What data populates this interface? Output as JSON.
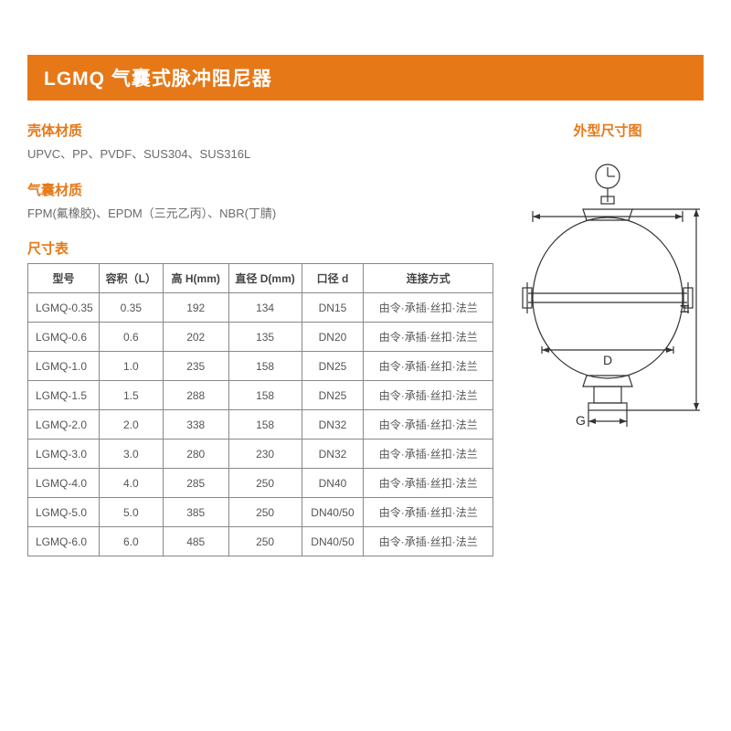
{
  "header": {
    "title": "LGMQ 气囊式脉冲阻尼器"
  },
  "sections": {
    "shell": {
      "title": "壳体材质",
      "body": "UPVC、PP、PVDF、SUS304、SUS316L"
    },
    "bladder": {
      "title": "气囊材质",
      "body": "FPM(氟橡胶)、EPDM（三元乙丙）、NBR(丁腈)"
    },
    "dims": {
      "title": "尺寸表"
    },
    "drawing": {
      "title": "外型尺寸图"
    }
  },
  "table": {
    "columns": [
      "型号",
      "容积（L）",
      "高 H(mm)",
      "直径 D(mm)",
      "口径 d",
      "连接方式"
    ],
    "col_widths": [
      "78px",
      "70px",
      "72px",
      "80px",
      "68px",
      "142px"
    ],
    "rows": [
      [
        "LGMQ-0.35",
        "0.35",
        "192",
        "134",
        "DN15",
        "由令·承插·丝扣·法兰"
      ],
      [
        "LGMQ-0.6",
        "0.6",
        "202",
        "135",
        "DN20",
        "由令·承插·丝扣·法兰"
      ],
      [
        "LGMQ-1.0",
        "1.0",
        "235",
        "158",
        "DN25",
        "由令·承插·丝扣·法兰"
      ],
      [
        "LGMQ-1.5",
        "1.5",
        "288",
        "158",
        "DN25",
        "由令·承插·丝扣·法兰"
      ],
      [
        "LGMQ-2.0",
        "2.0",
        "338",
        "158",
        "DN32",
        "由令·承插·丝扣·法兰"
      ],
      [
        "LGMQ-3.0",
        "3.0",
        "280",
        "230",
        "DN32",
        "由令·承插·丝扣·法兰"
      ],
      [
        "LGMQ-4.0",
        "4.0",
        "285",
        "250",
        "DN40",
        "由令·承插·丝扣·法兰"
      ],
      [
        "LGMQ-5.0",
        "5.0",
        "385",
        "250",
        "DN40/50",
        "由令·承插·丝扣·法兰"
      ],
      [
        "LGMQ-6.0",
        "6.0",
        "485",
        "250",
        "DN40/50",
        "由令·承插·丝扣·法兰"
      ]
    ]
  },
  "diagram": {
    "labels": {
      "D": "D",
      "G": "G",
      "H": "H"
    },
    "stroke": "#333333",
    "stroke_width": 1.2
  }
}
